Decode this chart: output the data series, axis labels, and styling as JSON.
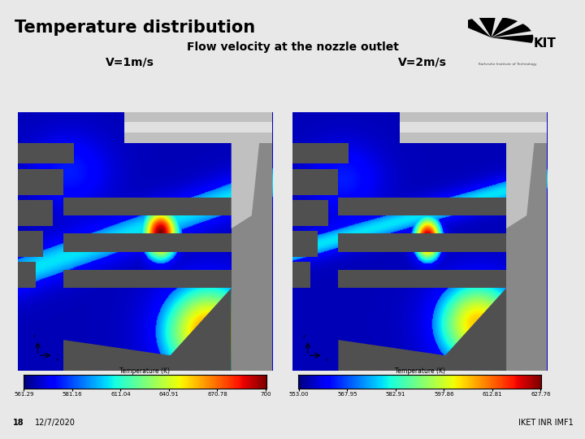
{
  "title": "Temperature distribution",
  "subtitle": "Flow velocity at the nozzle outlet",
  "label_left": "V=1m/s",
  "label_right": "V=2m/s",
  "footer_left_num": "18",
  "footer_left_date": "12/7/2020",
  "footer_right": "IKET INR IMF1",
  "bg_color": "#e8e8e8",
  "main_bg": "#ffffff",
  "footer_bg": "#c0c0c0",
  "title_fontsize": 15,
  "subtitle_fontsize": 10,
  "label_fontsize": 10,
  "footer_fontsize": 7,
  "colorbar1_values": [
    "561.29",
    "581.16",
    "611.04",
    "640.91",
    "670.78",
    "700"
  ],
  "colorbar2_values": [
    "553.00",
    "567.95",
    "582.91",
    "597.86",
    "612.81",
    "627.76"
  ]
}
